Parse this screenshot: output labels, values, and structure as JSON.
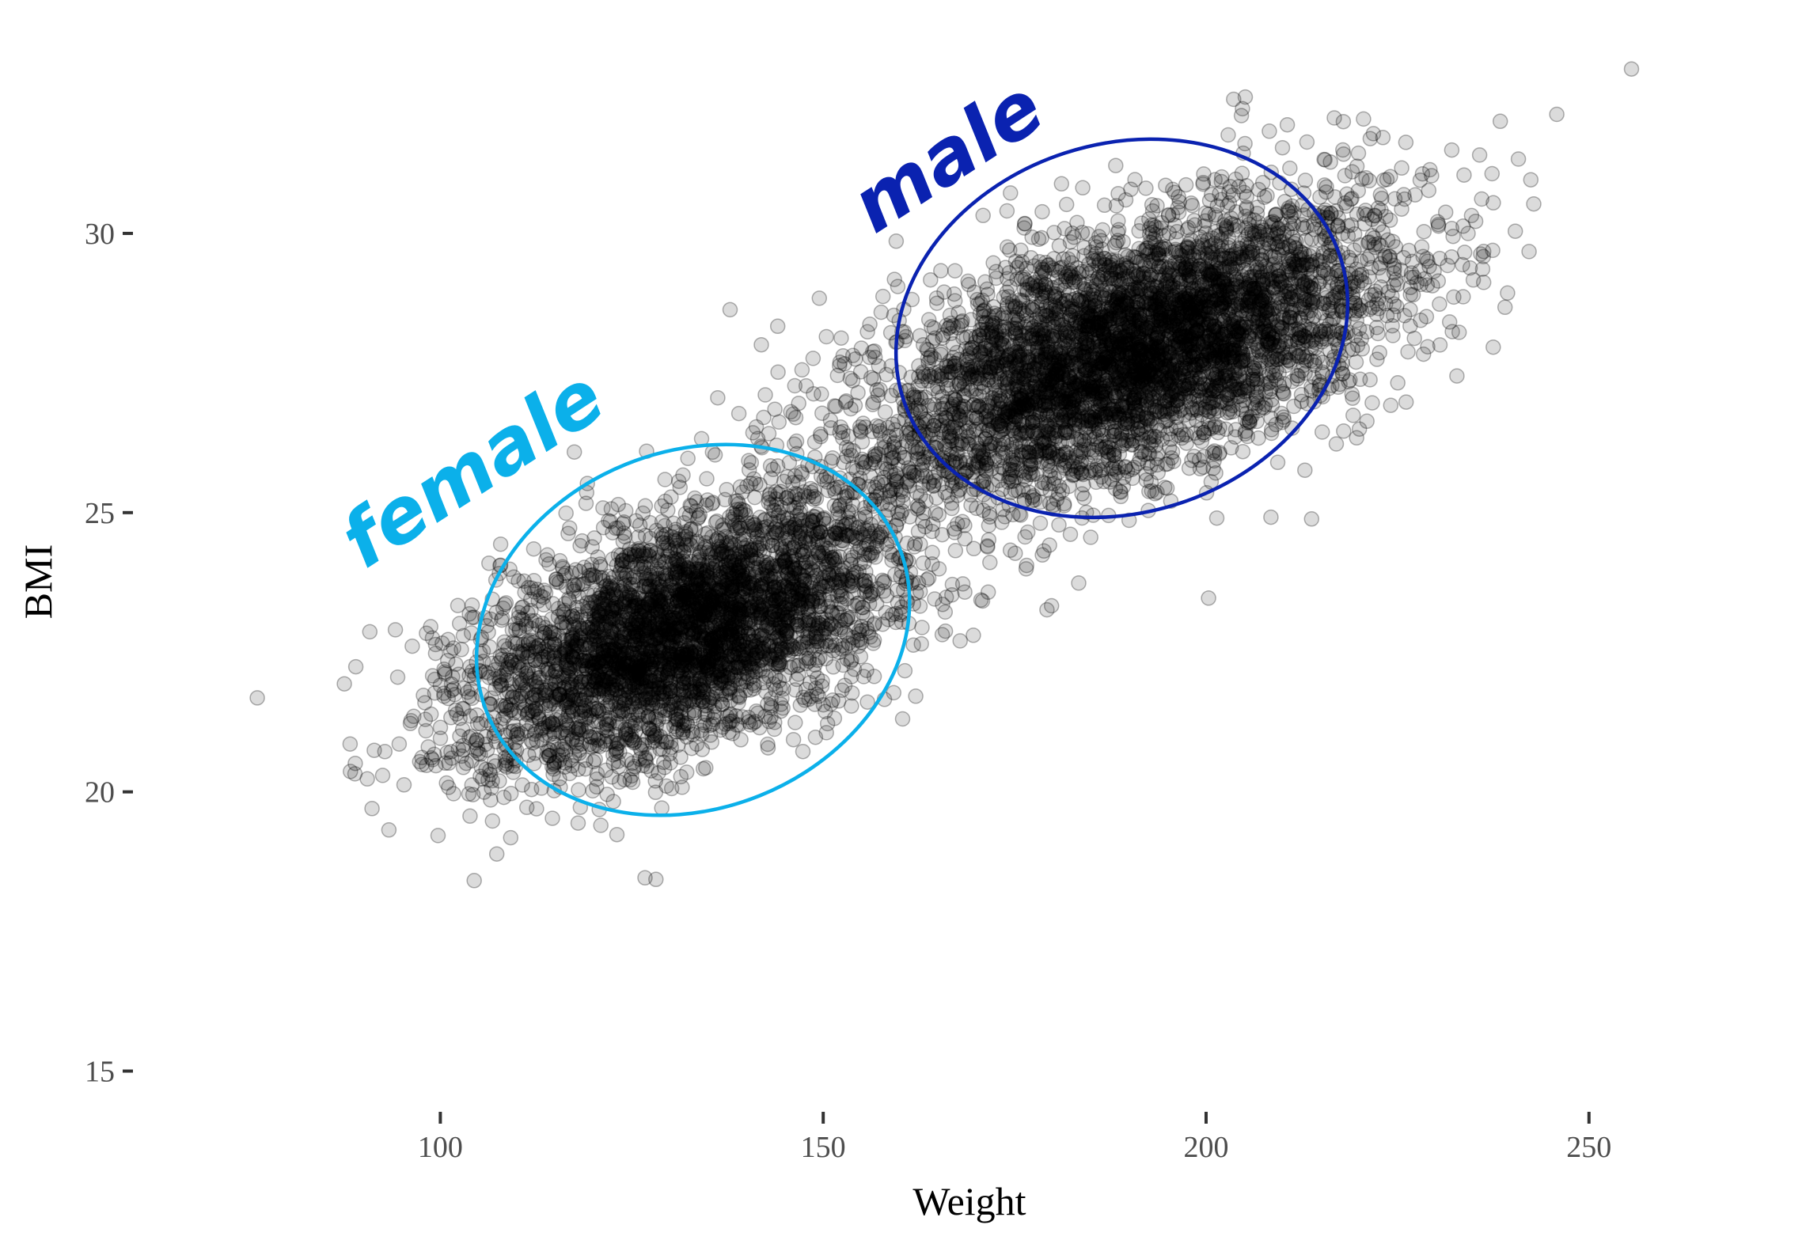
{
  "chart_data": {
    "type": "scatter",
    "title": "",
    "xlabel": "Weight",
    "ylabel": "BMI",
    "xlim": [
      58,
      274
    ],
    "ylim": [
      14.2,
      33.4
    ],
    "x_ticks": [
      100,
      150,
      200,
      250
    ],
    "y_ticks": [
      15,
      20,
      25,
      30
    ],
    "grid": false,
    "point_color": "#000000",
    "point_opacity": 0.14,
    "point_outline_opacity": 0.3,
    "distribution": {
      "n_points": 9000,
      "trend": "positive, roughly linear; BMI rises from about 15.5 at weight 65 to about 30.5 at weight 265",
      "clusters": [
        {
          "label": "female",
          "weight_mean": 132,
          "bmi_mean": 22.9,
          "weight_sd": 14,
          "bmi_sd": 1.25,
          "share": 0.45
        },
        {
          "label": "male",
          "weight_mean": 190,
          "bmi_mean": 27.9,
          "weight_sd": 17,
          "bmi_sd": 1.3,
          "share": 0.55
        }
      ]
    },
    "annotations": [
      {
        "text": "female",
        "color": "#0bb0ea",
        "ellipse": {
          "center": [
            133,
            22.9
          ],
          "semi_axis_weight": 58,
          "semi_axis_bmi": 3.2,
          "rotation_deg": -22
        }
      },
      {
        "text": "male",
        "color": "#0a22b0",
        "ellipse": {
          "center": [
            189,
            28.3
          ],
          "semi_axis_weight": 60,
          "semi_axis_bmi": 3.3,
          "rotation_deg": -18
        }
      }
    ]
  }
}
